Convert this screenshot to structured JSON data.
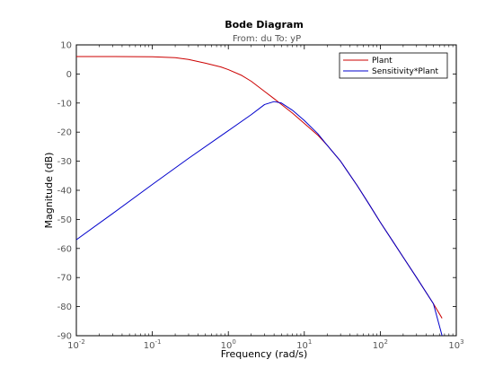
{
  "chart_data": {
    "type": "line",
    "title": "Bode Diagram",
    "subtitle": "From: du  To: yP",
    "xlabel": "Frequency  (rad/s)",
    "ylabel": "Magnitude (dB)",
    "xscale": "log",
    "xlim": [
      0.01,
      1000
    ],
    "ylim": [
      -90,
      10
    ],
    "x_ticks": [
      {
        "base": "10",
        "exp": "-2"
      },
      {
        "base": "10",
        "exp": "-1"
      },
      {
        "base": "10",
        "exp": "0"
      },
      {
        "base": "10",
        "exp": "1"
      },
      {
        "base": "10",
        "exp": "2"
      },
      {
        "base": "10",
        "exp": "3"
      }
    ],
    "y_ticks": [
      "10",
      "0",
      "-10",
      "-20",
      "-30",
      "-40",
      "-50",
      "-60",
      "-70",
      "-80",
      "-90"
    ],
    "grid": false,
    "legend_position": "top-right",
    "series": [
      {
        "name": "Plant",
        "color": "#cc0000",
        "x": [
          0.01,
          0.03,
          0.1,
          0.2,
          0.3,
          0.5,
          0.8,
          1.0,
          1.5,
          2.0,
          3.0,
          4.0,
          5.0,
          7.0,
          10.0,
          15.0,
          20.0,
          30.0,
          50.0,
          70.0,
          100.0,
          150.0,
          200.0,
          300.0,
          500.0,
          650.0
        ],
        "y": [
          6.0,
          6.0,
          5.9,
          5.6,
          5.0,
          3.7,
          2.4,
          1.5,
          -0.5,
          -2.5,
          -6.0,
          -8.5,
          -10.5,
          -13.5,
          -17.0,
          -21.0,
          -24.5,
          -30.0,
          -38.5,
          -44.5,
          -51.0,
          -58.0,
          -63.0,
          -70.0,
          -79.0,
          -84.0
        ]
      },
      {
        "name": "Sensitivity*Plant",
        "color": "#0000cc",
        "x": [
          0.01,
          0.03,
          0.1,
          0.3,
          1.0,
          2.0,
          3.0,
          4.0,
          5.0,
          7.0,
          10.0,
          15.0,
          20.0,
          30.0,
          50.0,
          70.0,
          100.0,
          150.0,
          200.0,
          300.0,
          500.0,
          650.0
        ],
        "y": [
          -57.0,
          -48.0,
          -38.0,
          -29.0,
          -19.5,
          -14.0,
          -10.5,
          -9.5,
          -10.0,
          -12.5,
          -16.0,
          -20.5,
          -24.5,
          -30.0,
          -38.5,
          -44.5,
          -51.0,
          -58.0,
          -63.0,
          -70.0,
          -79.0,
          -90.0
        ]
      }
    ]
  }
}
